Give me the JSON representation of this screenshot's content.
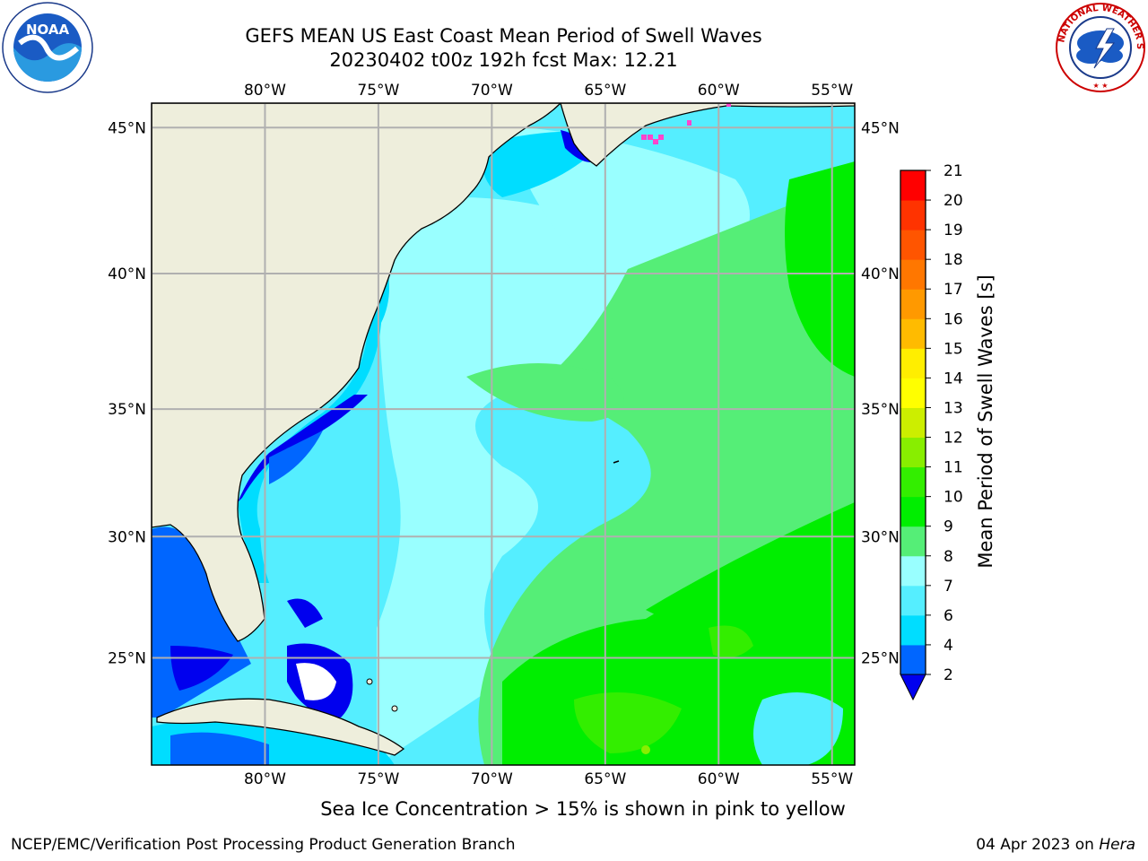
{
  "title": {
    "line1": "GEFS MEAN US East Coast Mean Period of Swell Waves",
    "line2": "20230402 t00z 192h fcst   Max: 12.21"
  },
  "map": {
    "lon_ticks": [
      "80°W",
      "75°W",
      "70°W",
      "65°W",
      "60°W",
      "55°W"
    ],
    "lat_ticks": [
      "45°N",
      "40°N",
      "35°N",
      "30°N",
      "25°N"
    ],
    "lon_range": [
      -85,
      -54
    ],
    "lat_range": [
      20.4,
      45.8
    ],
    "land_color": "#eeeedc",
    "grid_color": "#b0b0b0"
  },
  "colorbar": {
    "label": "Mean Period of Swell Waves [s]",
    "ticks": [
      "2",
      "4",
      "6",
      "7",
      "8",
      "9",
      "10",
      "11",
      "12",
      "13",
      "14",
      "15",
      "16",
      "17",
      "18",
      "19",
      "20",
      "21"
    ],
    "colors": [
      "#0066ff",
      "#00ddff",
      "#55eeff",
      "#99ffff",
      "#55ee77",
      "#00ee00",
      "#33ee00",
      "#88ee00",
      "#ccee00",
      "#ffff00",
      "#ffee00",
      "#ffbb00",
      "#ff9900",
      "#ff7700",
      "#ff5500",
      "#ff3300",
      "#ff0000"
    ],
    "under_color": "#0000ee"
  },
  "notes": {
    "ice": "Sea Ice Concentration > 15% is shown in pink to yellow"
  },
  "footer": {
    "left": "NCEP/EMC/Verification Post Processing Product Generation Branch",
    "right_date": "04 Apr 2023 on ",
    "right_machine": "Hera"
  },
  "logos": {
    "noaa_text": "NOAA",
    "nws_text": "NATIONAL WEATHER SERVICE"
  }
}
